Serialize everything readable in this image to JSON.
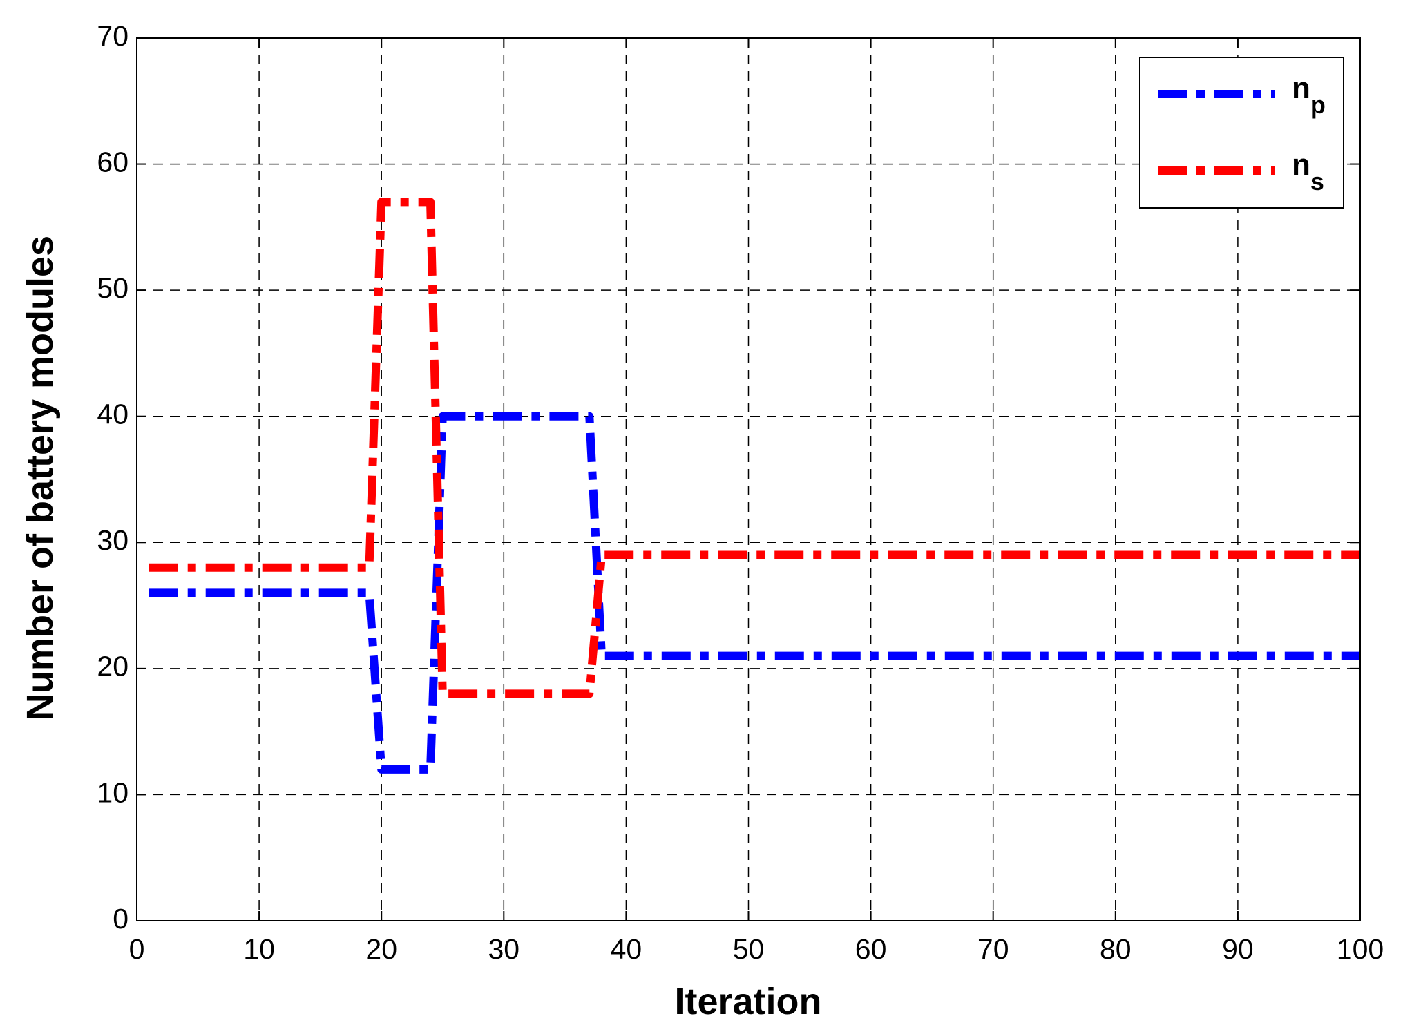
{
  "chart_data": {
    "type": "line",
    "xlabel": "Iteration",
    "ylabel": "Number of battery modules",
    "x": [
      1,
      2,
      3,
      4,
      5,
      6,
      7,
      8,
      9,
      10,
      11,
      12,
      13,
      14,
      15,
      16,
      17,
      18,
      19,
      20,
      21,
      22,
      23,
      24,
      25,
      26,
      27,
      28,
      29,
      30,
      31,
      32,
      33,
      34,
      35,
      36,
      37,
      38,
      39,
      40,
      41,
      42,
      43,
      44,
      45,
      46,
      47,
      48,
      49,
      50,
      51,
      52,
      53,
      54,
      55,
      56,
      57,
      58,
      59,
      60,
      61,
      62,
      63,
      64,
      65,
      66,
      67,
      68,
      69,
      70,
      71,
      72,
      73,
      74,
      75,
      76,
      77,
      78,
      79,
      80,
      81,
      82,
      83,
      84,
      85,
      86,
      87,
      88,
      89,
      90,
      91,
      92,
      93,
      94,
      95,
      96,
      97,
      98,
      99,
      100
    ],
    "series": [
      {
        "name": "n",
        "subscript": "p",
        "color": "#0000ff",
        "values": [
          26,
          26,
          26,
          26,
          26,
          26,
          26,
          26,
          26,
          26,
          26,
          26,
          26,
          26,
          26,
          26,
          26,
          26,
          26,
          12,
          12,
          12,
          12,
          12,
          40,
          40,
          40,
          40,
          40,
          40,
          40,
          40,
          40,
          40,
          40,
          40,
          40,
          21,
          21,
          21,
          21,
          21,
          21,
          21,
          21,
          21,
          21,
          21,
          21,
          21,
          21,
          21,
          21,
          21,
          21,
          21,
          21,
          21,
          21,
          21,
          21,
          21,
          21,
          21,
          21,
          21,
          21,
          21,
          21,
          21,
          21,
          21,
          21,
          21,
          21,
          21,
          21,
          21,
          21,
          21,
          21,
          21,
          21,
          21,
          21,
          21,
          21,
          21,
          21,
          21,
          21,
          21,
          21,
          21,
          21,
          21,
          21,
          21,
          21,
          21
        ]
      },
      {
        "name": "n",
        "subscript": "s",
        "color": "#ff0000",
        "values": [
          28,
          28,
          28,
          28,
          28,
          28,
          28,
          28,
          28,
          28,
          28,
          28,
          28,
          28,
          28,
          28,
          28,
          28,
          28,
          57,
          57,
          57,
          57,
          57,
          18,
          18,
          18,
          18,
          18,
          18,
          18,
          18,
          18,
          18,
          18,
          18,
          18,
          29,
          29,
          29,
          29,
          29,
          29,
          29,
          29,
          29,
          29,
          29,
          29,
          29,
          29,
          29,
          29,
          29,
          29,
          29,
          29,
          29,
          29,
          29,
          29,
          29,
          29,
          29,
          29,
          29,
          29,
          29,
          29,
          29,
          29,
          29,
          29,
          29,
          29,
          29,
          29,
          29,
          29,
          29,
          29,
          29,
          29,
          29,
          29,
          29,
          29,
          29,
          29,
          29,
          29,
          29,
          29,
          29,
          29,
          29,
          29,
          29,
          29,
          29
        ]
      }
    ],
    "xlim": [
      0,
      100
    ],
    "xticks": [
      0,
      10,
      20,
      30,
      40,
      50,
      60,
      70,
      80,
      90,
      100
    ],
    "ylim": [
      0,
      70
    ],
    "yticks": [
      0,
      10,
      20,
      30,
      40,
      50,
      60,
      70
    ],
    "grid": true,
    "legend": "upper right"
  }
}
